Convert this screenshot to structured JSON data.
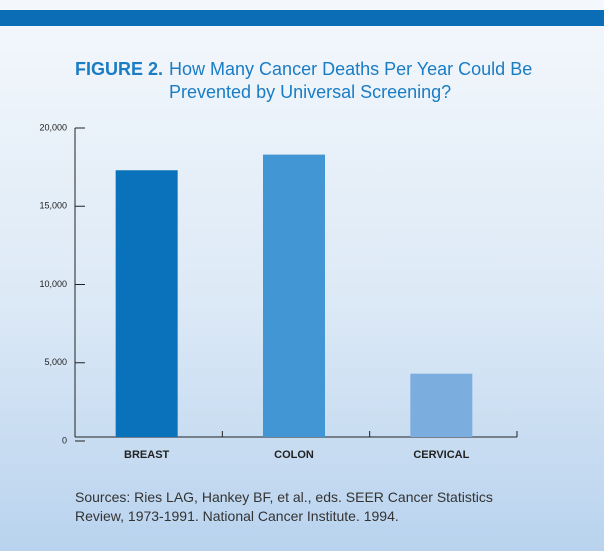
{
  "chart_data": {
    "type": "bar",
    "figure_label": "FIGURE 2.",
    "title": "How Many Cancer Deaths Per Year Could Be Prevented by Universal Screening?",
    "categories": [
      "BREAST",
      "COLON",
      "CERVICAL"
    ],
    "values": [
      17300,
      18300,
      4300
    ],
    "colors": [
      "#0a72ba",
      "#4296d3",
      "#7badde"
    ],
    "ylim": [
      0,
      20000
    ],
    "yticks": [
      0,
      {
        "value": 5000,
        "label": "5,000"
      },
      {
        "value": 10000,
        "label": "10,000"
      },
      {
        "value": 15000,
        "label": "15,000"
      },
      {
        "value": 20000,
        "label": "20,000"
      }
    ],
    "source": "Sources: Ries LAG, Hankey BF, et al., eds. SEER Cancer Statistics Review, 1973-1991. National Cancer Institute. 1994."
  }
}
